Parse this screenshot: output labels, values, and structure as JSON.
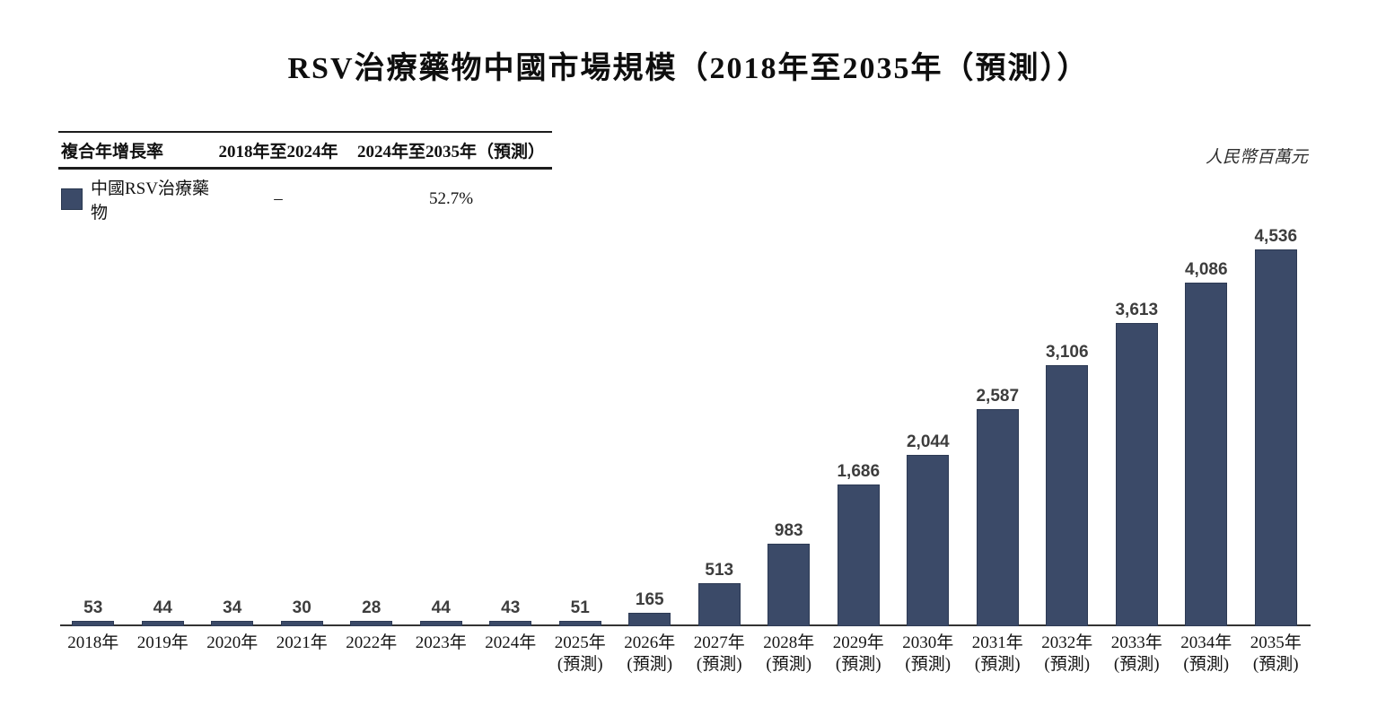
{
  "title": "RSV治療藥物中國市場規模（2018年至2035年（預測））",
  "unit_label": "人民幣百萬元",
  "cagr_table": {
    "headers": [
      "複合年增長率",
      "2018年至2024年",
      "2024年至2035年（預測）"
    ],
    "rows": [
      {
        "series": "中國RSV治療藥物",
        "cagr_2018_2024": "–",
        "cagr_2024_2035": "52.7%"
      }
    ]
  },
  "colors": {
    "bar": "#3b4a68",
    "axis": "#333333"
  },
  "chart_data": {
    "type": "bar",
    "title": "RSV治療藥物中國市場規模（2018年至2035年（預測））",
    "ylabel": "人民幣百萬元",
    "ylim": [
      0,
      4536
    ],
    "grid": false,
    "legend_position": "top-left",
    "series_name": "中國RSV治療藥物",
    "categories": [
      "2018年",
      "2019年",
      "2020年",
      "2021年",
      "2022年",
      "2023年",
      "2024年",
      "2025年",
      "2026年",
      "2027年",
      "2028年",
      "2029年",
      "2030年",
      "2031年",
      "2032年",
      "2033年",
      "2034年",
      "2035年"
    ],
    "forecast_note": "(預測)",
    "forecast_from_index": 7,
    "values": [
      53,
      44,
      34,
      30,
      28,
      44,
      43,
      51,
      165,
      513,
      983,
      1686,
      2044,
      2587,
      3106,
      3613,
      4086,
      4536
    ],
    "value_labels": [
      "53",
      "44",
      "34",
      "30",
      "28",
      "44",
      "43",
      "51",
      "165",
      "513",
      "983",
      "1,686",
      "2,044",
      "2,587",
      "3,106",
      "3,613",
      "4,086",
      "4,536"
    ]
  }
}
